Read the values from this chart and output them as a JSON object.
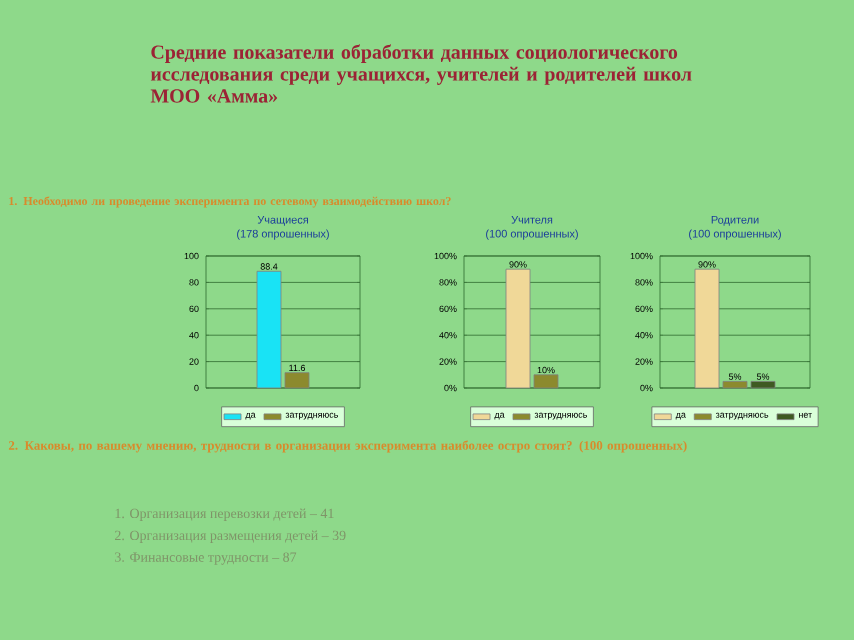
{
  "chart_data": [
    {
      "type": "other",
      "title": "Средние показатели обработки данных социологического исследования среди учащихся, учителей и родителей школ МОО «Амма»",
      "subtitle": "1. Необходимо ли проведение эксперимента по сетевому взаимодействию школ?"
    },
    {
      "type": "bar",
      "title": "Учащиеся",
      "subtitle": "(178 опрошенных)",
      "categories": [
        null
      ],
      "ylim": [
        0,
        100
      ],
      "yticks": [
        0,
        20,
        40,
        60,
        80,
        100
      ],
      "grid": "y",
      "legend": "bottom",
      "series": [
        {
          "name": "да",
          "color": "#19e3f5",
          "values": [
            88.4
          ],
          "value_labels": [
            "88.4"
          ]
        },
        {
          "name": "затрудняюсь",
          "color": "#8c8a2e",
          "values": [
            11.6
          ],
          "value_labels": [
            "11.6"
          ]
        }
      ]
    },
    {
      "type": "bar",
      "title": "Учителя",
      "subtitle": "(100 опрошенных)",
      "categories": [
        null
      ],
      "ylim": [
        0,
        100
      ],
      "yticks": [
        {
          "value": 0,
          "label": "0%"
        },
        {
          "value": 20,
          "label": "20%"
        },
        {
          "value": 40,
          "label": "40%"
        },
        {
          "value": 60,
          "label": "60%"
        },
        {
          "value": 80,
          "label": "80%"
        },
        {
          "value": 100,
          "label": "100%"
        }
      ],
      "grid": "y",
      "legend": "bottom",
      "series": [
        {
          "name": "да",
          "color": "#f0d898",
          "values": [
            90
          ],
          "value_labels": [
            "90%"
          ]
        },
        {
          "name": "затрудняюсь",
          "color": "#8c8a2e",
          "values": [
            10
          ],
          "value_labels": [
            "10%"
          ]
        }
      ]
    },
    {
      "type": "bar",
      "title": "Родители",
      "subtitle": "(100 опрошенных)",
      "categories": [
        null
      ],
      "ylim": [
        0,
        100
      ],
      "yticks": [
        {
          "value": 0,
          "label": "0%"
        },
        {
          "value": 20,
          "label": "20%"
        },
        {
          "value": 40,
          "label": "40%"
        },
        {
          "value": 60,
          "label": "60%"
        },
        {
          "value": 80,
          "label": "80%"
        },
        {
          "value": 100,
          "label": "100%"
        }
      ],
      "grid": "y",
      "legend": "bottom",
      "series": [
        {
          "name": "да",
          "color": "#f0d898",
          "values": [
            90
          ],
          "value_labels": [
            "90%"
          ]
        },
        {
          "name": "затрудняюсь",
          "color": "#8c8a2e",
          "values": [
            5
          ],
          "value_labels": [
            "5%"
          ]
        },
        {
          "name": "нет",
          "color": "#3f5a22",
          "values": [
            5
          ],
          "value_labels": [
            "5%"
          ]
        }
      ]
    },
    {
      "type": "other",
      "title": "2. Каковы, по вашему мнению, трудности в организации эксперимента наиболее остро стоят? (100 опрошенных)",
      "annotations": [
        "1. Организация перевозки детей – 41",
        "2. Организация размещения детей – 39",
        "3. Финансовые трудности – 87"
      ]
    }
  ]
}
